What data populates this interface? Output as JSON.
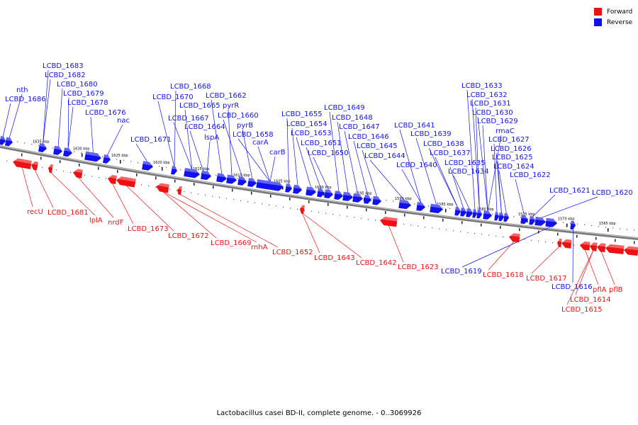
{
  "legend": {
    "forward": {
      "label": "Forward",
      "color": "#ee1111"
    },
    "reverse": {
      "label": "Reverse",
      "color": "#1111ee"
    }
  },
  "caption": "Lactobacillus casei BD-II, complete genome. - 0..3069926",
  "scale_ticks": [
    "1635 kbp",
    "1630 kbp",
    "1625 kbp",
    "1620 kbp",
    "1615 kbp",
    "1610 kbp",
    "1605 kbp",
    "1600 kbp",
    "1595 kbp",
    "1590 kbp",
    "1585 kbp",
    "1580 kbp",
    "1575 kbp",
    "1570 kbp",
    "1565 kbp"
  ],
  "reverse_labels": [
    "nth",
    "LCBD_1686",
    "LCBD_1683",
    "LCBD_1682",
    "LCBD_1680",
    "LCBD_1679",
    "LCBD_1678",
    "LCBD_1676",
    "nac",
    "LCBD_1671",
    "LCBD_1668",
    "LCBD_1670",
    "LCBD_1665",
    "LCBD_1667",
    "LCBD_1664",
    "lspA",
    "LCBD_1662",
    "pyrR",
    "LCBD_1660",
    "pyrB",
    "LCBD_1658",
    "carA",
    "carB",
    "LCBD_1655",
    "LCBD_1654",
    "LCBD_1653",
    "LCBD_1651",
    "LCBD_1650",
    "LCBD_1649",
    "LCBD_1648",
    "LCBD_1647",
    "LCBD_1646",
    "LCBD_1645",
    "LCBD_1644",
    "LCBD_1641",
    "LCBD_1639",
    "LCBD_1638",
    "LCBD_1637",
    "LCBD_1640",
    "LCBD_1635",
    "LCBD_1634",
    "LCBD_1633",
    "LCBD_1632",
    "LCBD_1631",
    "LCBD_1630",
    "LCBD_1629",
    "rmaC",
    "LCBD_1627",
    "LCBD_1626",
    "LCBD_1625",
    "LCBD_1624",
    "LCBD_1622",
    "LCBD_1621",
    "LCBD_1620",
    "LCBD_1619",
    "LCBD_1616"
  ],
  "forward_labels": [
    "recU",
    "LCBD_1681",
    "lplA",
    "nrdF",
    "LCBD_1673",
    "LCBD_1672",
    "LCBD_1669",
    "rnhA",
    "LCBD_1652",
    "LCBD_1643",
    "LCBD_1642",
    "LCBD_1623",
    "LCBD_1618",
    "LCBD_1617",
    "pflA",
    "pflB",
    "LCBD_1614",
    "LCBD_1615"
  ]
}
